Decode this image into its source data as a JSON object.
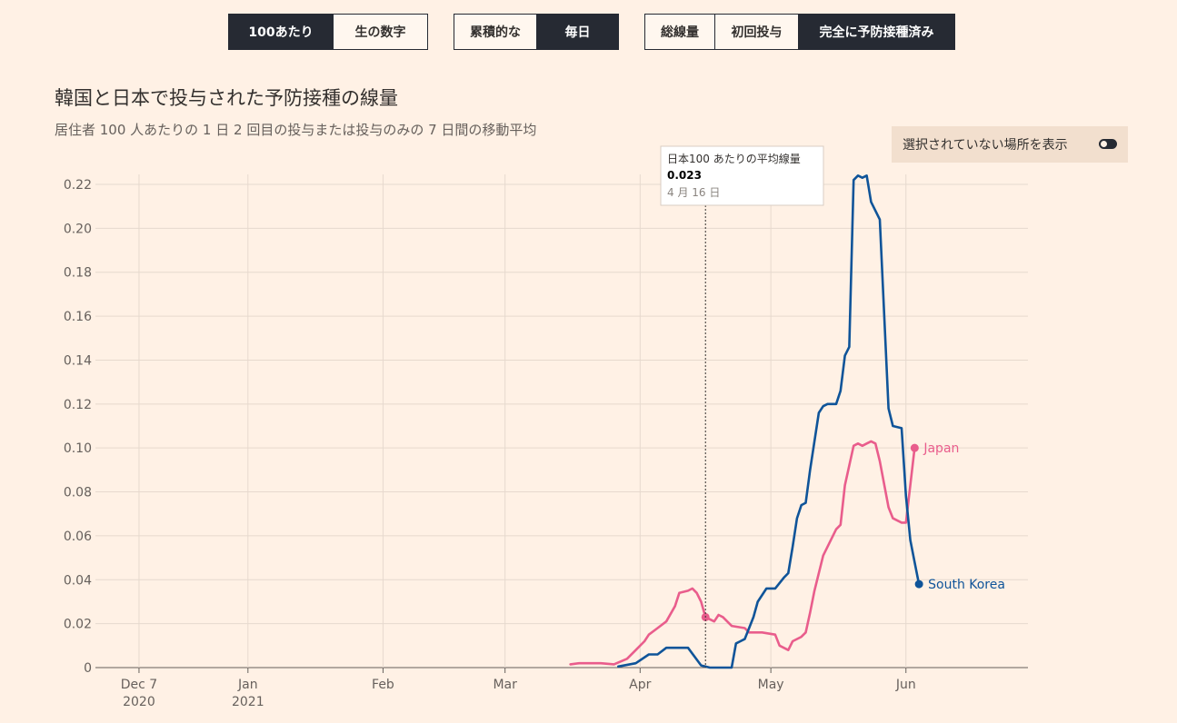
{
  "toolbar": {
    "unit_group": [
      {
        "label": "100あたり",
        "active": true
      },
      {
        "label": "生の数字",
        "active": false
      }
    ],
    "mode_group": [
      {
        "label": "累積的な",
        "active": false
      },
      {
        "label": "毎日",
        "active": true
      }
    ],
    "dose_group": [
      {
        "label": "総線量",
        "active": false
      },
      {
        "label": "初回投与",
        "active": false
      },
      {
        "label": "完全に予防接種済み",
        "active": true
      }
    ]
  },
  "toggle": {
    "label": "選択されていない場所を表示"
  },
  "tooltip": {
    "title": "日本100 あたりの平均線量",
    "value": "0.023",
    "date": "4 月 16 日"
  },
  "chart_data": {
    "type": "line",
    "title": "韓国と日本で投与された予防接種の線量",
    "subtitle": "居住者 100 人あたりの 1 日 2 回目の投与または投与のみの 7 日間の移動平均",
    "xlabel": "",
    "ylabel": "",
    "ylim": [
      0,
      0.22
    ],
    "y_ticks": [
      0,
      0.02,
      0.04,
      0.06,
      0.08,
      0.1,
      0.12,
      0.14,
      0.16,
      0.18,
      0.2,
      0.22
    ],
    "y_tick_labels": [
      "0",
      "0.02",
      "0.04",
      "0.06",
      "0.08",
      "0.10",
      "0.12",
      "0.14",
      "0.16",
      "0.18",
      "0.20",
      "0.22"
    ],
    "x_range": [
      "2020-11-27",
      "2021-06-29"
    ],
    "x_ticks": [
      {
        "date": "2020-12-07",
        "label": "Dec 7",
        "label2": "2020"
      },
      {
        "date": "2021-01-01",
        "label": "Jan",
        "label2": "2021"
      },
      {
        "date": "2021-02-01",
        "label": "Feb",
        "label2": ""
      },
      {
        "date": "2021-03-01",
        "label": "Mar",
        "label2": ""
      },
      {
        "date": "2021-04-01",
        "label": "Apr",
        "label2": ""
      },
      {
        "date": "2021-05-01",
        "label": "May",
        "label2": ""
      },
      {
        "date": "2021-06-01",
        "label": "Jun",
        "label2": ""
      }
    ],
    "grid": true,
    "hover_date": "2021-04-16",
    "series": [
      {
        "name": "Japan",
        "color": "#e95d8c",
        "points": [
          [
            "2021-03-16",
            0.0015
          ],
          [
            "2021-03-18",
            0.002
          ],
          [
            "2021-03-20",
            0.002
          ],
          [
            "2021-03-23",
            0.002
          ],
          [
            "2021-03-26",
            0.0015
          ],
          [
            "2021-03-29",
            0.004
          ],
          [
            "2021-03-31",
            0.008
          ],
          [
            "2021-04-02",
            0.012
          ],
          [
            "2021-04-03",
            0.015
          ],
          [
            "2021-04-05",
            0.018
          ],
          [
            "2021-04-07",
            0.021
          ],
          [
            "2021-04-09",
            0.028
          ],
          [
            "2021-04-10",
            0.034
          ],
          [
            "2021-04-12",
            0.035
          ],
          [
            "2021-04-13",
            0.036
          ],
          [
            "2021-04-14",
            0.034
          ],
          [
            "2021-04-15",
            0.03
          ],
          [
            "2021-04-16",
            0.023
          ],
          [
            "2021-04-18",
            0.021
          ],
          [
            "2021-04-19",
            0.024
          ],
          [
            "2021-04-20",
            0.023
          ],
          [
            "2021-04-22",
            0.019
          ],
          [
            "2021-04-25",
            0.018
          ],
          [
            "2021-04-26",
            0.016
          ],
          [
            "2021-04-29",
            0.016
          ],
          [
            "2021-05-02",
            0.015
          ],
          [
            "2021-05-03",
            0.01
          ],
          [
            "2021-05-05",
            0.008
          ],
          [
            "2021-05-06",
            0.012
          ],
          [
            "2021-05-08",
            0.014
          ],
          [
            "2021-05-09",
            0.016
          ],
          [
            "2021-05-10",
            0.025
          ],
          [
            "2021-05-11",
            0.035
          ],
          [
            "2021-05-13",
            0.051
          ],
          [
            "2021-05-16",
            0.063
          ],
          [
            "2021-05-17",
            0.065
          ],
          [
            "2021-05-18",
            0.083
          ],
          [
            "2021-05-20",
            0.101
          ],
          [
            "2021-05-21",
            0.102
          ],
          [
            "2021-05-22",
            0.101
          ],
          [
            "2021-05-23",
            0.102
          ],
          [
            "2021-05-24",
            0.103
          ],
          [
            "2021-05-25",
            0.102
          ],
          [
            "2021-05-26",
            0.094
          ],
          [
            "2021-05-28",
            0.073
          ],
          [
            "2021-05-29",
            0.068
          ],
          [
            "2021-05-31",
            0.066
          ],
          [
            "2021-06-01",
            0.066
          ],
          [
            "2021-06-03",
            0.1
          ]
        ]
      },
      {
        "name": "South Korea",
        "color": "#0f5499",
        "points": [
          [
            "2021-03-27",
            0.0005
          ],
          [
            "2021-03-31",
            0.002
          ],
          [
            "2021-04-03",
            0.006
          ],
          [
            "2021-04-05",
            0.006
          ],
          [
            "2021-04-07",
            0.009
          ],
          [
            "2021-04-08",
            0.009
          ],
          [
            "2021-04-10",
            0.009
          ],
          [
            "2021-04-12",
            0.009
          ],
          [
            "2021-04-15",
            0.001
          ],
          [
            "2021-04-17",
            0.0
          ],
          [
            "2021-04-19",
            0.0
          ],
          [
            "2021-04-20",
            0.0
          ],
          [
            "2021-04-22",
            0.0
          ],
          [
            "2021-04-23",
            0.011
          ],
          [
            "2021-04-24",
            0.012
          ],
          [
            "2021-04-25",
            0.013
          ],
          [
            "2021-04-27",
            0.023
          ],
          [
            "2021-04-28",
            0.03
          ],
          [
            "2021-04-30",
            0.036
          ],
          [
            "2021-05-02",
            0.036
          ],
          [
            "2021-05-04",
            0.041
          ],
          [
            "2021-05-05",
            0.043
          ],
          [
            "2021-05-06",
            0.055
          ],
          [
            "2021-05-07",
            0.068
          ],
          [
            "2021-05-08",
            0.074
          ],
          [
            "2021-05-09",
            0.075
          ],
          [
            "2021-05-10",
            0.09
          ],
          [
            "2021-05-12",
            0.116
          ],
          [
            "2021-05-13",
            0.119
          ],
          [
            "2021-05-14",
            0.12
          ],
          [
            "2021-05-16",
            0.12
          ],
          [
            "2021-05-17",
            0.126
          ],
          [
            "2021-05-18",
            0.142
          ],
          [
            "2021-05-19",
            0.146
          ],
          [
            "2021-05-20",
            0.222
          ],
          [
            "2021-05-21",
            0.224
          ],
          [
            "2021-05-22",
            0.223
          ],
          [
            "2021-05-23",
            0.224
          ],
          [
            "2021-05-24",
            0.212
          ],
          [
            "2021-05-26",
            0.204
          ],
          [
            "2021-05-28",
            0.118
          ],
          [
            "2021-05-29",
            0.11
          ],
          [
            "2021-05-31",
            0.109
          ],
          [
            "2021-06-01",
            0.078
          ],
          [
            "2021-06-02",
            0.058
          ],
          [
            "2021-06-03",
            0.048
          ],
          [
            "2021-06-04",
            0.038
          ]
        ]
      }
    ]
  }
}
